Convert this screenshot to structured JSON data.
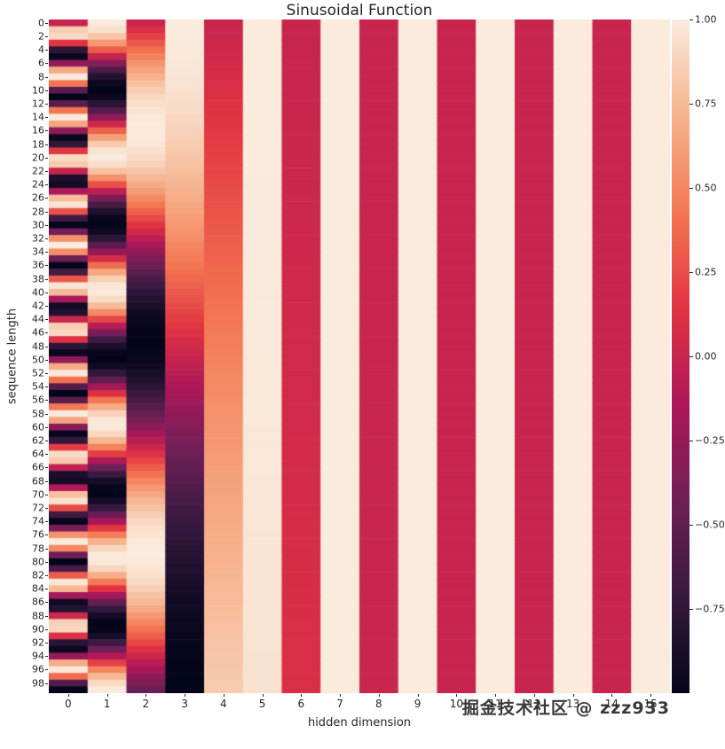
{
  "chart_data": {
    "type": "heatmap",
    "title": "Sinusoidal Function",
    "xlabel": "hidden dimension",
    "ylabel": "sequence length",
    "n_rows": 100,
    "n_cols": 16,
    "d_model": 16,
    "base": 10000,
    "value_formula": "PE[pos,i] = sin(pos / base^(2i/d_model)) for even i, cos(pos / base^(2i/d_model)) for odd i; pos = 0..99, i = 0..15",
    "vmin": -1,
    "vmax": 1,
    "x_tick_labels": [
      "0",
      "1",
      "2",
      "3",
      "4",
      "5",
      "6",
      "7",
      "8",
      "9",
      "10",
      "11",
      "12",
      "13",
      "14",
      "15"
    ],
    "y_tick_step": 2,
    "y_tick_labels": [
      "0",
      "2",
      "4",
      "6",
      "8",
      "10",
      "12",
      "14",
      "16",
      "18",
      "20",
      "22",
      "24",
      "26",
      "28",
      "30",
      "32",
      "34",
      "36",
      "38",
      "40",
      "42",
      "44",
      "46",
      "48",
      "50",
      "52",
      "54",
      "56",
      "58",
      "60",
      "62",
      "64",
      "66",
      "68",
      "70",
      "72",
      "74",
      "76",
      "78",
      "80",
      "82",
      "84",
      "86",
      "88",
      "90",
      "92",
      "94",
      "96",
      "98"
    ],
    "colormap": {
      "name": "rocket",
      "stops": [
        [
          0.0,
          "#03051A"
        ],
        [
          0.14,
          "#35193E"
        ],
        [
          0.29,
          "#701F57"
        ],
        [
          0.43,
          "#AD1759"
        ],
        [
          0.57,
          "#E13342"
        ],
        [
          0.71,
          "#F37651"
        ],
        [
          0.86,
          "#F6B48F"
        ],
        [
          1.0,
          "#FAEBDD"
        ]
      ]
    },
    "colorbar_ticks": [
      {
        "label": "1.00",
        "value": 1.0
      },
      {
        "label": "0.75",
        "value": 0.75
      },
      {
        "label": "0.50",
        "value": 0.5
      },
      {
        "label": "0.25",
        "value": 0.25
      },
      {
        "label": "0.00",
        "value": 0.0
      },
      {
        "label": "−0.25",
        "value": -0.25
      },
      {
        "label": "−0.50",
        "value": -0.5
      },
      {
        "label": "−0.75",
        "value": -0.75
      }
    ],
    "legend": "none",
    "grid": false
  },
  "watermark": {
    "text": "掘金技术社区 @ zzz933"
  }
}
